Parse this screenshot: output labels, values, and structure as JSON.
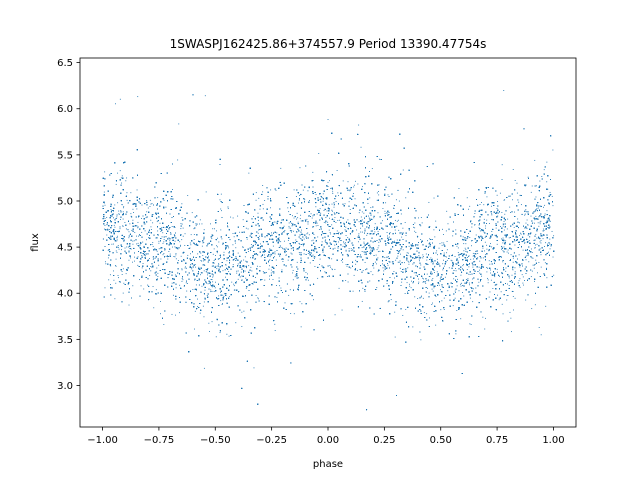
{
  "chart_data": {
    "type": "scatter",
    "title": "1SWASPJ162425.86+374557.9 Period 13390.47754s",
    "xlabel": "phase",
    "ylabel": "flux",
    "xlim": [
      -1.1,
      1.1
    ],
    "ylim": [
      2.55,
      6.55
    ],
    "xticks": [
      -1.0,
      -0.75,
      -0.5,
      -0.25,
      0.0,
      0.25,
      0.5,
      0.75,
      1.0
    ],
    "xtick_labels": [
      "−1.00",
      "−0.75",
      "−0.50",
      "−0.25",
      "0.00",
      "0.25",
      "0.50",
      "0.75",
      "1.00"
    ],
    "yticks": [
      3.0,
      3.5,
      4.0,
      4.5,
      5.0,
      5.5,
      6.0,
      6.5
    ],
    "ytick_labels": [
      "3.0",
      "3.5",
      "4.0",
      "4.5",
      "5.0",
      "5.5",
      "6.0",
      "6.5"
    ],
    "grid": false,
    "marker_color": "#1f77b4",
    "series": [
      {
        "x_range": [
          -1.0,
          1.0
        ],
        "mean_curve": {
          "phase": [
            -1.0,
            -0.75,
            -0.5,
            -0.25,
            0.0,
            0.25,
            0.5,
            0.75,
            1.0
          ],
          "flux": [
            4.72,
            4.55,
            4.25,
            4.5,
            4.72,
            4.55,
            4.25,
            4.5,
            4.72
          ]
        },
        "scatter_sigma": 0.3,
        "outlier_flux_range": [
          2.7,
          6.4
        ],
        "point_count": 30000
      }
    ]
  }
}
